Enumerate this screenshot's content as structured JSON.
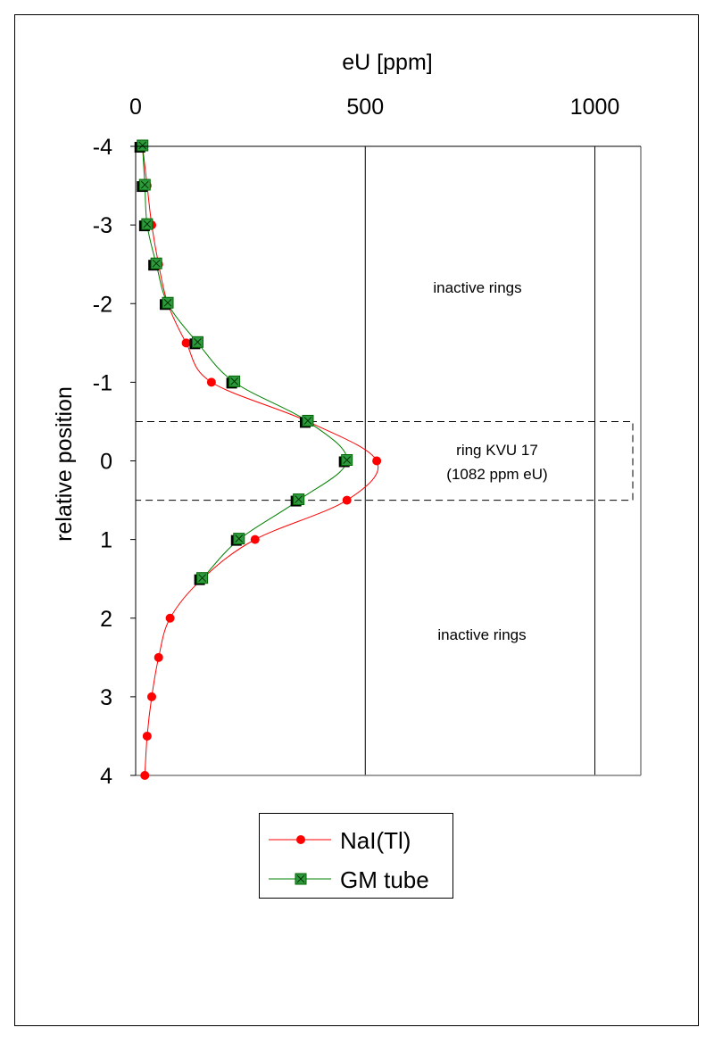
{
  "chart_data": {
    "type": "line",
    "orientation": "vertical-profile",
    "xlabel": "eU [ppm]",
    "ylabel": "relative position",
    "xlim": [
      0,
      1100
    ],
    "ylim": [
      -4,
      4
    ],
    "y_inverted": true,
    "x_axis_position": "top",
    "x_ticks": [
      "0",
      "500",
      "1000"
    ],
    "y_ticks": [
      "-4",
      "-3",
      "-2",
      "-1",
      "0",
      "1",
      "2",
      "3",
      "4"
    ],
    "grid": "vertical lines at 500 and 1000",
    "legend_placement": "bottom",
    "series": [
      {
        "name": "NaI(Tl)",
        "color": "#ff0000",
        "marker": "circle",
        "points": [
          {
            "x": 15,
            "y": -4.0
          },
          {
            "x": 25,
            "y": -3.5
          },
          {
            "x": 35,
            "y": -3.0
          },
          {
            "x": 50,
            "y": -2.5
          },
          {
            "x": 70,
            "y": -2.0
          },
          {
            "x": 110,
            "y": -1.5
          },
          {
            "x": 165,
            "y": -1.0
          },
          {
            "x": 375,
            "y": -0.5
          },
          {
            "x": 525,
            "y": 0.0
          },
          {
            "x": 460,
            "y": 0.5
          },
          {
            "x": 260,
            "y": 1.0
          },
          {
            "x": 145,
            "y": 1.5
          },
          {
            "x": 75,
            "y": 2.0
          },
          {
            "x": 50,
            "y": 2.5
          },
          {
            "x": 35,
            "y": 3.0
          },
          {
            "x": 25,
            "y": 3.5
          },
          {
            "x": 20,
            "y": 4.0
          }
        ]
      },
      {
        "name": "GM tube",
        "color": "#008000",
        "marker": "square",
        "points": [
          {
            "x": 15,
            "y": -4.0
          },
          {
            "x": 20,
            "y": -3.5
          },
          {
            "x": 25,
            "y": -3.0
          },
          {
            "x": 45,
            "y": -2.5
          },
          {
            "x": 70,
            "y": -2.0
          },
          {
            "x": 135,
            "y": -1.5
          },
          {
            "x": 215,
            "y": -1.0
          },
          {
            "x": 375,
            "y": -0.5
          },
          {
            "x": 460,
            "y": 0.0
          },
          {
            "x": 355,
            "y": 0.5
          },
          {
            "x": 225,
            "y": 1.0
          },
          {
            "x": 145,
            "y": 1.5
          }
        ]
      }
    ],
    "annotations": [
      {
        "text": "inactive rings",
        "x": 750,
        "y": -2.2
      },
      {
        "text": "ring KVU 17",
        "x": 770,
        "y": -0.15
      },
      {
        "text": "(1082 ppm eU)",
        "x": 770,
        "y": 0.15
      },
      {
        "text": "inactive rings",
        "x": 760,
        "y": 2.2
      }
    ],
    "highlight_band": {
      "y_from": -0.5,
      "y_to": 0.5,
      "style": "dashed"
    }
  },
  "legend": {
    "items": [
      {
        "label": "NaI(Tl)",
        "color": "#ff0000",
        "marker": "circle"
      },
      {
        "label": "GM tube",
        "color": "#008000",
        "marker": "square"
      }
    ]
  }
}
